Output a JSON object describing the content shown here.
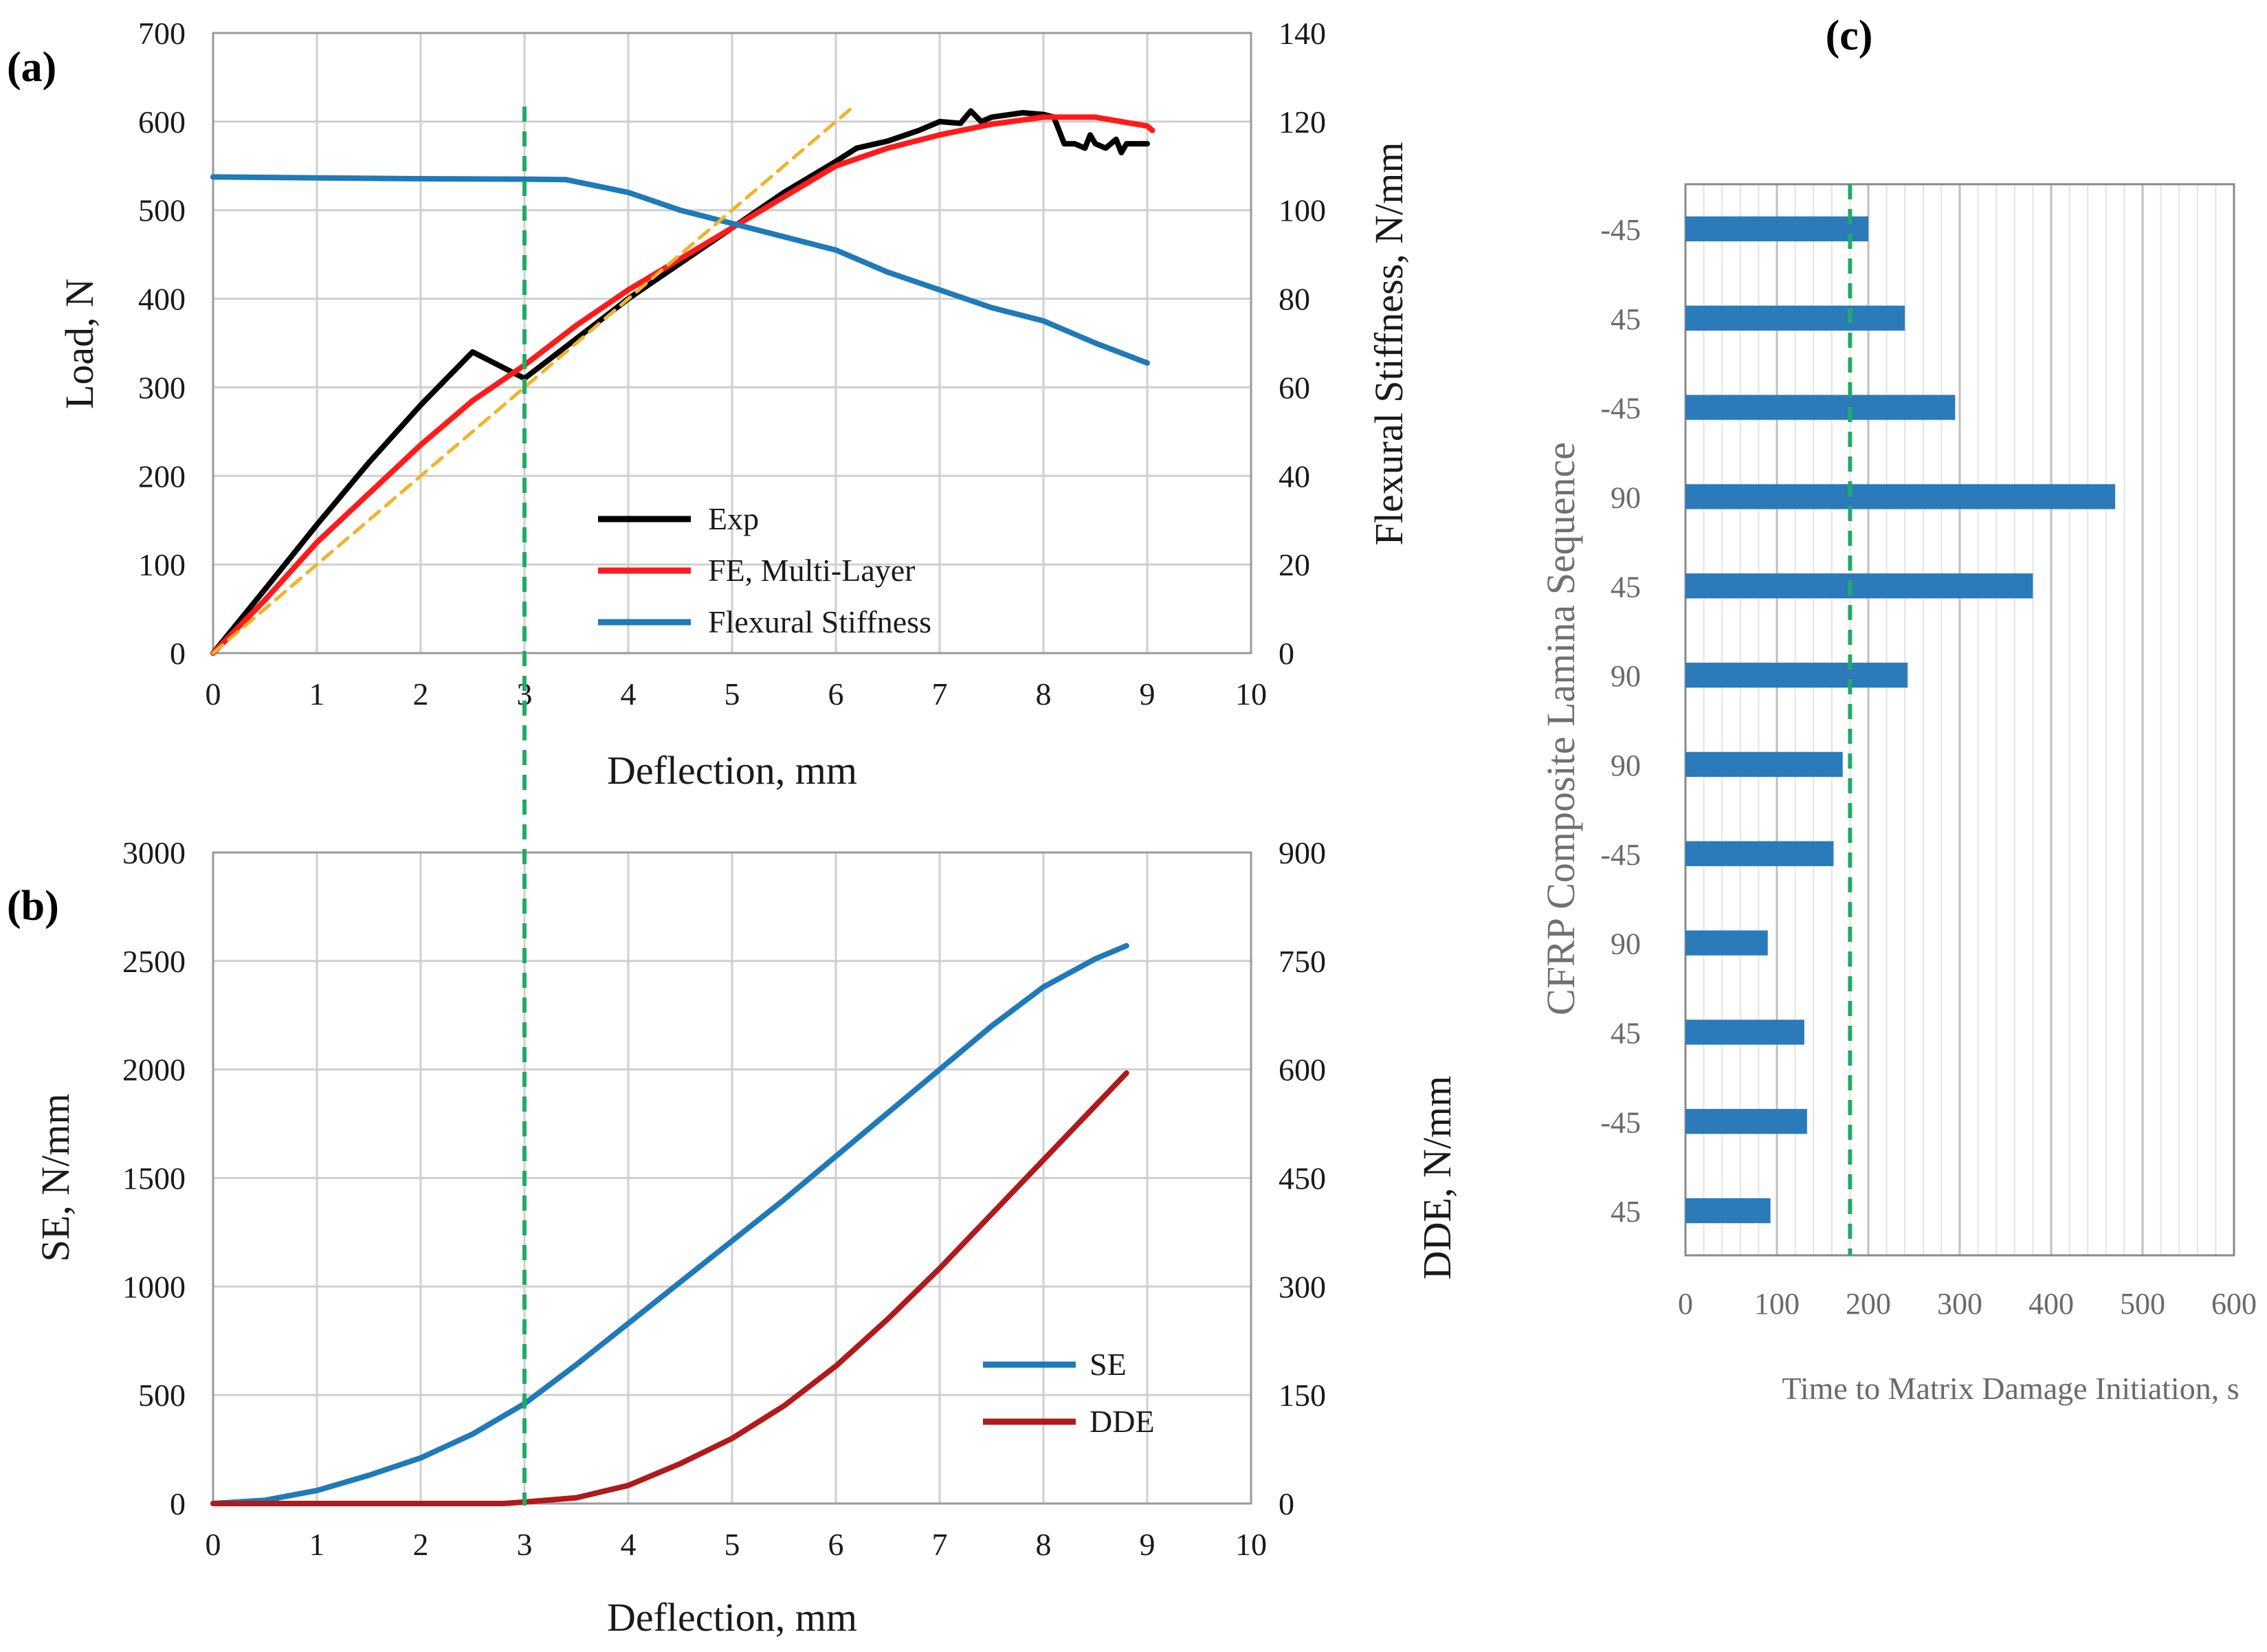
{
  "chart_data": [
    {
      "panel": "(a)",
      "type": "line",
      "xlabel": "Deflection, mm",
      "ylabel": "Load, N",
      "y2label": "Flexural Stiffness, N/mm",
      "xlim": [
        0,
        10
      ],
      "ylim": [
        0,
        700
      ],
      "y2lim": [
        0,
        140
      ],
      "xticks": [
        "0",
        "1",
        "2",
        "3",
        "4",
        "5",
        "6",
        "7",
        "8",
        "9",
        "10"
      ],
      "yticks": [
        "0",
        "100",
        "200",
        "300",
        "400",
        "500",
        "600",
        "700"
      ],
      "y2ticks": [
        "0",
        "20",
        "40",
        "60",
        "80",
        "100",
        "120",
        "140"
      ],
      "grid": true,
      "legend_position": "bottom-center",
      "series": [
        {
          "name": "Exp",
          "axis": "left",
          "color": "#000000",
          "x": [
            0,
            0.5,
            1,
            1.5,
            2,
            2.5,
            3,
            3.5,
            4,
            4.5,
            5,
            5.5,
            6,
            6.2,
            6.5,
            6.8,
            7,
            7.2,
            7.3,
            7.4,
            7.5,
            7.8,
            8,
            8.1,
            8.15,
            8.2,
            8.3,
            8.4,
            8.45,
            8.5,
            8.6,
            8.7,
            8.75,
            8.8,
            8.9,
            9
          ],
          "y": [
            0,
            72,
            145,
            215,
            280,
            340,
            310,
            355,
            400,
            440,
            480,
            520,
            555,
            570,
            578,
            590,
            600,
            598,
            612,
            600,
            605,
            610,
            608,
            605,
            590,
            575,
            575,
            570,
            585,
            575,
            570,
            580,
            565,
            575,
            575,
            575
          ]
        },
        {
          "name": "FE, Multi-Layer",
          "axis": "left",
          "color": "#ff1a1a",
          "x": [
            0,
            0.5,
            1,
            1.5,
            2,
            2.5,
            3,
            3.5,
            4,
            4.5,
            5,
            5.5,
            6,
            6.5,
            7,
            7.5,
            8,
            8.5,
            9,
            9.05
          ],
          "y": [
            0,
            60,
            125,
            180,
            235,
            285,
            325,
            370,
            410,
            445,
            480,
            515,
            550,
            570,
            585,
            597,
            605,
            605,
            595,
            590
          ]
        },
        {
          "name": "Flexural Stiffness",
          "axis": "right",
          "color": "#1f7ab8",
          "x": [
            0,
            1,
            2,
            3,
            3.4,
            4,
            4.5,
            5,
            5.5,
            6,
            6.5,
            7,
            7.5,
            8,
            8.5,
            9
          ],
          "y": [
            107.5,
            107.3,
            107.1,
            107,
            106.9,
            104,
            100,
            97,
            94,
            91,
            86,
            82,
            78,
            75,
            70,
            65.5
          ]
        },
        {
          "name": "Linear fit (dashed)",
          "axis": "left",
          "color": "#f0b429",
          "legend": false,
          "x": [
            0,
            6.15
          ],
          "y": [
            0,
            615
          ]
        }
      ],
      "annotations": [
        {
          "type": "vline",
          "x": 3,
          "color": "#22aa66",
          "style": "dashed"
        }
      ]
    },
    {
      "panel": "(b)",
      "type": "line",
      "xlabel": "Deflection, mm",
      "ylabel": "SE, N/mm",
      "y2label": "DDE, N/mm",
      "xlim": [
        0,
        10
      ],
      "ylim": [
        0,
        3000
      ],
      "y2lim": [
        0,
        900
      ],
      "xticks": [
        "0",
        "1",
        "2",
        "3",
        "4",
        "5",
        "6",
        "7",
        "8",
        "9",
        "10"
      ],
      "yticks": [
        "0",
        "500",
        "1000",
        "1500",
        "2000",
        "2500",
        "3000"
      ],
      "y2ticks": [
        "0",
        "150",
        "300",
        "450",
        "600",
        "750",
        "900"
      ],
      "grid": true,
      "legend_position": "bottom-right",
      "series": [
        {
          "name": "SE",
          "axis": "left",
          "color": "#1f7ab8",
          "x": [
            0,
            0.5,
            1,
            1.5,
            2,
            2.5,
            3,
            3.5,
            4,
            4.5,
            5,
            5.5,
            6,
            6.5,
            7,
            7.5,
            8,
            8.5,
            8.8
          ],
          "y": [
            0,
            15,
            60,
            130,
            210,
            320,
            460,
            640,
            830,
            1020,
            1210,
            1400,
            1600,
            1800,
            2000,
            2200,
            2380,
            2510,
            2570
          ]
        },
        {
          "name": "DDE",
          "axis": "right",
          "color": "#b01a1a",
          "x": [
            0,
            1,
            2,
            2.8,
            3,
            3.5,
            4,
            4.5,
            5,
            5.5,
            6,
            6.5,
            7,
            7.5,
            8,
            8.5,
            8.8
          ],
          "y": [
            0,
            0,
            0,
            0,
            2,
            8,
            25,
            55,
            90,
            135,
            190,
            255,
            325,
            400,
            475,
            550,
            595
          ]
        }
      ],
      "annotations": [
        {
          "type": "vline",
          "x": 3,
          "color": "#22aa66",
          "style": "dashed"
        }
      ]
    },
    {
      "panel": "(c)",
      "type": "bar",
      "orientation": "horizontal",
      "xlabel": "Time to Matrix Damage Initiation, s",
      "ylabel": "CFRP Composite Lamina Sequence",
      "xlim": [
        0,
        600
      ],
      "xticks": [
        "0",
        "100",
        "200",
        "300",
        "400",
        "500",
        "600"
      ],
      "categories": [
        "-45",
        "45",
        "-45",
        "90",
        "45",
        "90",
        "90",
        "-45",
        "90",
        "45",
        "-45",
        "45"
      ],
      "values": [
        200,
        240,
        295,
        470,
        380,
        243,
        172,
        162,
        90,
        130,
        133,
        93
      ],
      "color": "#2b7bba",
      "grid": true,
      "annotations": [
        {
          "type": "vline",
          "x": 180,
          "color": "#22aa66",
          "style": "dashed"
        }
      ]
    }
  ]
}
